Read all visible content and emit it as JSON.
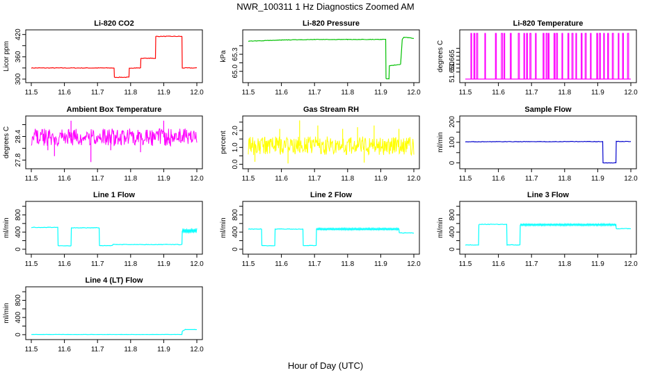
{
  "figure": {
    "title": "NWR_100311  1 Hz Diagnostics Zoomed AM",
    "xlabel": "Hour of Day (UTC)"
  },
  "chart_data": [
    {
      "type": "line",
      "title": "Li-820 CO2",
      "ylabel": "Licor ppm",
      "color": "#ff0000",
      "xlim": [
        11.5,
        12.0
      ],
      "ylim": [
        298,
        425
      ],
      "xticks": [
        "11.5",
        "11.6",
        "11.7",
        "11.8",
        "11.9",
        "12.0"
      ],
      "yticks": [
        300,
        360,
        420
      ],
      "yticklabels": [
        "300",
        "360",
        "420"
      ],
      "extra_ytick_positions": [
        330,
        390
      ],
      "noise": 0.8,
      "series": [
        {
          "x": [
            11.5,
            11.75,
            11.751,
            11.795,
            11.796,
            11.83,
            11.831,
            11.875,
            11.876,
            11.955,
            11.956,
            12.0
          ],
          "values": [
            330,
            330,
            305,
            305,
            330,
            330,
            356,
            356,
            415,
            415,
            330,
            330
          ]
        }
      ]
    },
    {
      "type": "line",
      "title": "Li-820 Pressure",
      "ylabel": "kPa",
      "color": "#00c000",
      "xlim": [
        11.5,
        12.0
      ],
      "ylim": [
        64.85,
        65.68
      ],
      "xticks": [
        "11.5",
        "11.6",
        "11.7",
        "11.8",
        "11.9",
        "12.0"
      ],
      "yticks": [
        65.0,
        65.3
      ],
      "yticklabels": [
        "65.0",
        "65.3"
      ],
      "extra_ytick_positions": [
        65.15,
        65.45
      ],
      "noise": 0.004,
      "series": [
        {
          "x": [
            11.5,
            11.6,
            11.7,
            11.8,
            11.9,
            11.915,
            11.916,
            11.925,
            11.926,
            11.96,
            11.965,
            11.97,
            12.0
          ],
          "values": [
            65.53,
            65.55,
            65.56,
            65.56,
            65.56,
            65.56,
            64.87,
            64.87,
            65.1,
            65.12,
            65.56,
            65.6,
            65.58
          ]
        }
      ]
    },
    {
      "type": "line",
      "title": "Li-820 Temperature",
      "ylabel": "degrees C",
      "color": "#ff00ff",
      "xlim": [
        11.5,
        12.0
      ],
      "ylim": [
        51.64,
        51.7
      ],
      "xticks": [
        "11.5",
        "11.6",
        "11.7",
        "11.8",
        "11.9",
        "12.0"
      ],
      "yticks": [
        51.65,
        51.665
      ],
      "yticklabels": [
        "51.650",
        "51.665"
      ],
      "extra_ytick_positions": [
        51.655,
        51.66,
        51.67,
        51.675,
        51.68
      ],
      "spike_low": 51.641,
      "spike_high": 51.699,
      "spikes": [
        11.517,
        11.526,
        11.534,
        11.559,
        11.591,
        11.609,
        11.617,
        11.636,
        11.66,
        11.677,
        11.685,
        11.695,
        11.712,
        11.735,
        11.744,
        11.751,
        11.768,
        11.775,
        11.792,
        11.81,
        11.822,
        11.834,
        11.85,
        11.862,
        11.878,
        11.897,
        11.905,
        11.918,
        11.93,
        11.944,
        11.962,
        11.975,
        11.99
      ]
    },
    {
      "type": "line",
      "title": "Ambient Box Temperature",
      "ylabel": "degrees C",
      "color": "#ff00ff",
      "xlim": [
        11.5,
        12.0
      ],
      "ylim": [
        27.65,
        28.85
      ],
      "xticks": [
        "11.5",
        "11.6",
        "11.7",
        "11.8",
        "11.9",
        "12.0"
      ],
      "yticks": [
        27.8,
        28.4
      ],
      "yticklabels": [
        "27.8",
        "28.4"
      ],
      "extra_ytick_positions": [
        28.1,
        28.7
      ],
      "noise_band": {
        "center": 28.38,
        "half": 0.22,
        "outliers": [
          [
            11.57,
            27.9
          ],
          [
            11.68,
            27.75
          ],
          [
            11.62,
            28.8
          ],
          [
            11.74,
            28.05
          ],
          [
            11.83,
            28.0
          ],
          [
            11.9,
            28.8
          ],
          [
            11.55,
            28.05
          ]
        ]
      }
    },
    {
      "type": "line",
      "title": "Gas Stream RH",
      "ylabel": "percent",
      "color": "#ffff00",
      "xlim": [
        11.5,
        12.0
      ],
      "ylim": [
        -0.1,
        2.7
      ],
      "xticks": [
        "11.5",
        "11.6",
        "11.7",
        "11.8",
        "11.9",
        "12.0"
      ],
      "yticks": [
        0.0,
        1.0,
        2.0
      ],
      "yticklabels": [
        "0.0",
        "1.0",
        "2.0"
      ],
      "extra_ytick_positions": [
        0.5,
        1.5,
        2.5
      ],
      "noise_band": {
        "center": 1.1,
        "half": 0.55,
        "outliers": [
          [
            11.595,
            2.1
          ],
          [
            11.655,
            2.6
          ],
          [
            11.71,
            2.3
          ],
          [
            11.785,
            2.1
          ],
          [
            11.83,
            2.2
          ],
          [
            11.88,
            2.3
          ],
          [
            11.955,
            2.1
          ],
          [
            11.62,
            0.05
          ],
          [
            11.85,
            0.1
          ],
          [
            11.52,
            0.15
          ]
        ]
      }
    },
    {
      "type": "line",
      "title": "Sample Flow",
      "ylabel": "ml/min",
      "color": "#0000cc",
      "xlim": [
        11.5,
        12.0
      ],
      "ylim": [
        -15,
        215
      ],
      "xticks": [
        "11.5",
        "11.6",
        "11.7",
        "11.8",
        "11.9",
        "12.0"
      ],
      "yticks": [
        0,
        100,
        200
      ],
      "yticklabels": [
        "0",
        "100",
        "200"
      ],
      "extra_ytick_positions": [
        50,
        150
      ],
      "noise": 1,
      "series": [
        {
          "x": [
            11.5,
            11.915,
            11.916,
            11.955,
            11.956,
            12.0
          ],
          "values": [
            103,
            104,
            0,
            0,
            105,
            104
          ]
        }
      ]
    },
    {
      "type": "line",
      "title": "Line 1 Flow",
      "ylabel": "ml/min",
      "color": "#00ffff",
      "xlim": [
        11.5,
        12.0
      ],
      "ylim": [
        -50,
        1050
      ],
      "xticks": [
        "11.5",
        "11.6",
        "11.7",
        "11.8",
        "11.9",
        "12.0"
      ],
      "yticks": [
        0,
        400,
        800
      ],
      "yticklabels": [
        "0",
        "400",
        "800"
      ],
      "extra_ytick_positions": [
        200,
        600,
        1000
      ],
      "noise": 6,
      "series": [
        {
          "x": [
            11.5,
            11.58,
            11.581,
            11.62,
            11.621,
            11.705,
            11.706,
            11.745,
            11.746,
            11.955,
            11.956,
            12.0
          ],
          "values": [
            510,
            510,
            80,
            80,
            500,
            500,
            85,
            85,
            110,
            110,
            430,
            430
          ]
        }
      ],
      "wide_band": [
        11.956,
        12.0,
        60
      ]
    },
    {
      "type": "line",
      "title": "Line 2 Flow",
      "ylabel": "ml/min",
      "color": "#00ffff",
      "xlim": [
        11.5,
        12.0
      ],
      "ylim": [
        -50,
        1050
      ],
      "xticks": [
        "11.5",
        "11.6",
        "11.7",
        "11.8",
        "11.9",
        "12.0"
      ],
      "yticks": [
        0,
        400,
        800
      ],
      "yticklabels": [
        "0",
        "400",
        "800"
      ],
      "extra_ytick_positions": [
        200,
        600,
        1000
      ],
      "noise": 6,
      "series": [
        {
          "x": [
            11.5,
            11.54,
            11.541,
            11.58,
            11.581,
            11.665,
            11.666,
            11.705,
            11.706,
            11.955,
            11.956,
            12.0
          ],
          "values": [
            470,
            470,
            85,
            85,
            470,
            470,
            85,
            85,
            470,
            470,
            380,
            380
          ]
        }
      ],
      "wide_band": [
        11.706,
        11.955,
        25
      ]
    },
    {
      "type": "line",
      "title": "Line 3 Flow",
      "ylabel": "ml/min",
      "color": "#00ffff",
      "xlim": [
        11.5,
        12.0
      ],
      "ylim": [
        -50,
        1050
      ],
      "xticks": [
        "11.5",
        "11.6",
        "11.7",
        "11.8",
        "11.9",
        "12.0"
      ],
      "yticks": [
        0,
        400,
        800
      ],
      "yticklabels": [
        "0",
        "400",
        "800"
      ],
      "extra_ytick_positions": [
        200,
        600,
        1000
      ],
      "noise": 6,
      "series": [
        {
          "x": [
            11.5,
            11.54,
            11.541,
            11.625,
            11.626,
            11.665,
            11.666,
            11.955,
            11.956,
            12.0
          ],
          "values": [
            100,
            100,
            580,
            580,
            100,
            100,
            570,
            570,
            480,
            480
          ]
        }
      ],
      "wide_band": [
        11.666,
        11.955,
        25
      ]
    },
    {
      "type": "line",
      "title": "Line 4 (LT) Flow",
      "ylabel": "ml/min",
      "color": "#00ffff",
      "xlim": [
        11.5,
        12.0
      ],
      "ylim": [
        -50,
        1050
      ],
      "xticks": [
        "11.5",
        "11.6",
        "11.7",
        "11.8",
        "11.9",
        "12.0"
      ],
      "yticks": [
        0,
        400,
        800
      ],
      "yticklabels": [
        "0",
        "400",
        "800"
      ],
      "extra_ytick_positions": [
        200,
        600,
        1000
      ],
      "noise": 2,
      "series": [
        {
          "x": [
            11.5,
            11.955,
            11.956,
            11.965,
            12.0
          ],
          "values": [
            5,
            5,
            80,
            120,
            120
          ]
        }
      ]
    }
  ]
}
